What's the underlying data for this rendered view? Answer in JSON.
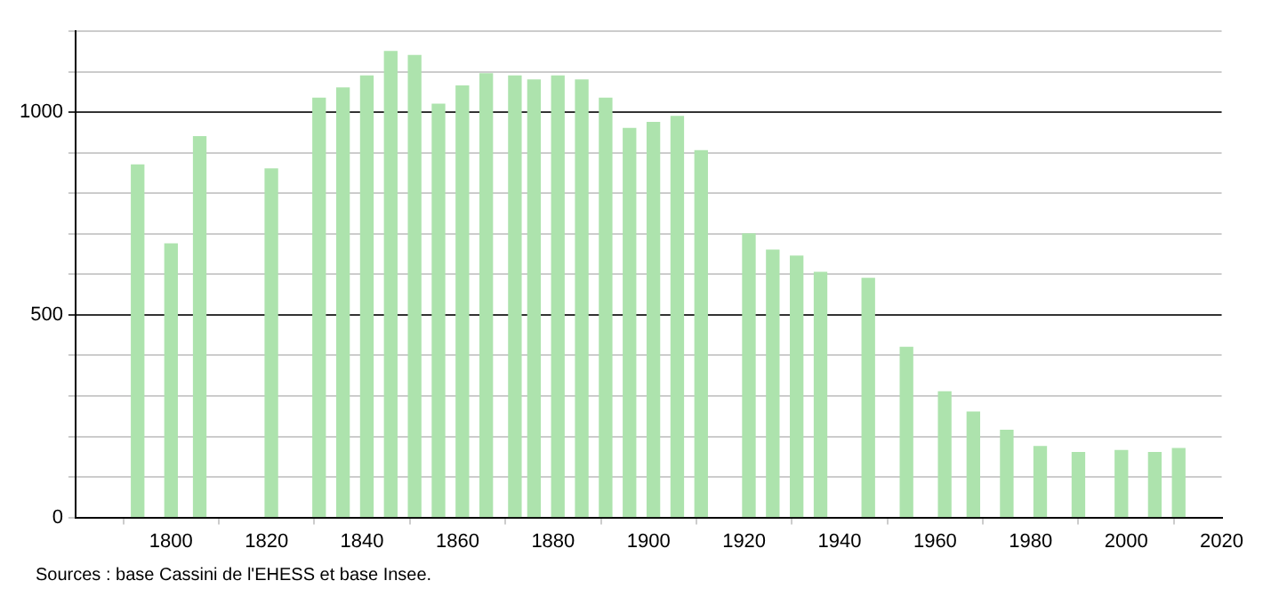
{
  "chart_data": {
    "type": "bar",
    "x": [
      1793,
      1800,
      1806,
      1821,
      1831,
      1836,
      1841,
      1846,
      1851,
      1856,
      1861,
      1866,
      1872,
      1876,
      1881,
      1886,
      1891,
      1896,
      1901,
      1906,
      1911,
      1921,
      1926,
      1931,
      1936,
      1946,
      1954,
      1962,
      1968,
      1975,
      1982,
      1990,
      1999,
      2006,
      2011
    ],
    "values": [
      870,
      675,
      940,
      860,
      1035,
      1060,
      1090,
      1150,
      1140,
      1020,
      1065,
      1095,
      1090,
      1080,
      1090,
      1080,
      1035,
      960,
      975,
      990,
      905,
      700,
      660,
      645,
      605,
      590,
      420,
      310,
      260,
      215,
      175,
      160,
      165,
      160,
      170
    ],
    "color": "#ade3ad",
    "xlim": [
      1780,
      2020
    ],
    "xticks": [
      1800,
      1820,
      1840,
      1860,
      1880,
      1900,
      1920,
      1940,
      1960,
      1980,
      2000,
      2020
    ],
    "ylim": [
      0,
      1200
    ],
    "yticks": [
      0,
      {
        "value": 100,
        "label": null
      },
      {
        "value": 200,
        "label": null
      },
      {
        "value": 300,
        "label": null
      },
      {
        "value": 400,
        "label": null
      },
      500,
      {
        "value": 600,
        "label": null
      },
      {
        "value": 700,
        "label": null
      },
      {
        "value": 800,
        "label": null
      },
      {
        "value": 900,
        "label": null
      },
      1000,
      {
        "value": 1100,
        "label": null
      },
      {
        "value": 1200,
        "label": null
      }
    ],
    "grid": "y",
    "legend": false,
    "annotations": [
      "Sources : base Cassini de l'EHESS et base Insee."
    ]
  }
}
